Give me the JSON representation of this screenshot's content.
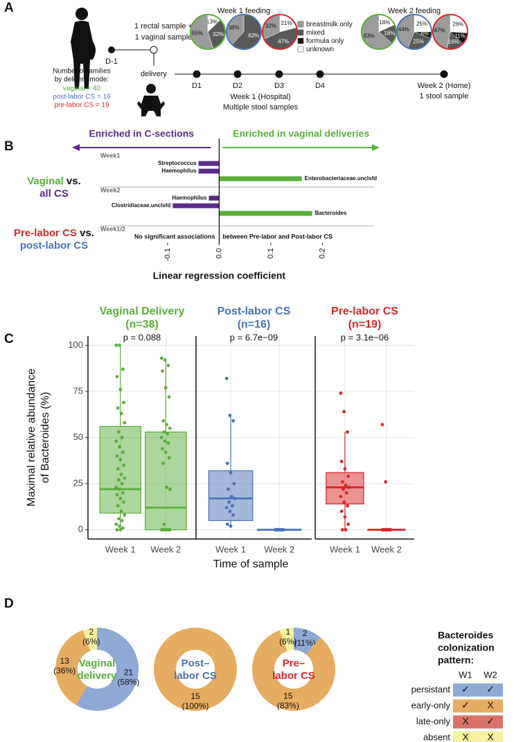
{
  "panel_labels": [
    "A",
    "B",
    "C",
    "D"
  ],
  "panel_a": {
    "sample_text": [
      "1 rectal sample +",
      "1 vaginal sample"
    ],
    "day_minus": "D-1",
    "delivery": "delivery",
    "families_title": [
      "Number of families",
      "by delivery mode:"
    ],
    "families": [
      {
        "text": "vaginal = 40",
        "color": "#5aae3c"
      },
      {
        "text": "post-labor CS = 16",
        "color": "#4a72b8"
      },
      {
        "text": "pre-labor CS = 19",
        "color": "#d62728"
      }
    ],
    "days": [
      "D1",
      "D2",
      "D3",
      "D4"
    ],
    "week1": [
      "Week 1 (Hospital)",
      "Multiple stool samples"
    ],
    "week2": [
      "Week 2 (Home)",
      "1 stool sample"
    ]
  },
  "chart_data": [
    {
      "type": "pie",
      "categories": [
        "breastmilk only",
        "mixed",
        "formula only",
        "unknown"
      ],
      "colors": [
        "#9b9b9b",
        "#595959",
        "#111111",
        "#ffffff"
      ],
      "groups": [
        {
          "title": "Week 1 feeding",
          "pies": [
            {
              "border": "#5aae3c",
              "values": [
                55,
                32,
                0,
                13
              ],
              "value_labels": [
                "55%",
                "32%",
                null,
                "13%"
              ]
            },
            {
              "border": "#4a72b8",
              "values": [
                38,
                62,
                0,
                0
              ],
              "value_labels": [
                "38%",
                "62%",
                null,
                null
              ]
            },
            {
              "border": "#d62728",
              "values": [
                32,
                47,
                0,
                21
              ],
              "value_labels": [
                "32%",
                "47%",
                null,
                "21%"
              ]
            }
          ]
        },
        {
          "title": "Week 2 feeding",
          "pies": [
            {
              "border": "#5aae3c",
              "values": [
                63,
                18,
                0,
                18
              ],
              "value_labels": [
                "63%",
                "18%",
                null,
                "18%"
              ]
            },
            {
              "border": "#4a72b8",
              "values": [
                44,
                25,
                6,
                25
              ],
              "value_labels": [
                "44%",
                "25%",
                "6%",
                "25%"
              ]
            },
            {
              "border": "#d62728",
              "values": [
                47,
                16,
                11,
                26
              ],
              "value_labels": [
                "47%",
                "16%",
                "11%",
                "26%"
              ]
            }
          ]
        }
      ]
    },
    {
      "type": "bar",
      "horizontal": true,
      "arrows": [
        {
          "text": "Enriched in C-sections",
          "color": "#5b2c8a"
        },
        {
          "text": "Enriched in vaginal deliveries",
          "color": "#5aae3c"
        }
      ],
      "comparisons": [
        {
          "lines": [
            [
              {
                "text": "Vaginal",
                "color": "#5aae3c"
              },
              {
                "text": " vs.",
                "color": "#111111"
              }
            ],
            [
              {
                "text": "all CS",
                "color": "#5b2c8a"
              }
            ]
          ]
        },
        {
          "lines": [
            [
              {
                "text": "Pre-labor CS",
                "color": "#d62728"
              },
              {
                "text": " vs.",
                "color": "#111111"
              }
            ],
            [
              {
                "text": "post-labor CS",
                "color": "#4a72b8"
              }
            ]
          ]
        }
      ],
      "sections": [
        {
          "label": "Week1",
          "categories": [
            "Streptococcus",
            "Haemophilus",
            "Enterobacteriaceae.unclsfd"
          ],
          "values": [
            -0.04,
            -0.04,
            0.16
          ]
        },
        {
          "label": "Week2",
          "categories": [
            "Haemophilus",
            "Clostridiaceae.unclsfd",
            "Bacteroides"
          ],
          "values": [
            -0.02,
            -0.09,
            0.18
          ]
        },
        {
          "label": "Week1/2",
          "note": [
            "No significant associations",
            "between Pre-labor and Post-labor CS"
          ]
        }
      ],
      "negative_color": "#5b2c8a",
      "positive_color": "#5aae3c",
      "xlim": [
        -0.23,
        0.3
      ],
      "xticks": [
        -0.1,
        {
          "value": 0,
          "label": "0.0"
        },
        0.1,
        0.2
      ],
      "xlabel": "Linear regression coefficient"
    },
    {
      "type": "box",
      "ylabel": [
        "Maximal relative abundance",
        "of Bacteroides (%)"
      ],
      "xlabel": "Time of sample",
      "categories": [
        "Week 1",
        "Week 2"
      ],
      "ylim": [
        -5,
        105
      ],
      "yticks": [
        0,
        25,
        50,
        75,
        100
      ],
      "grid": true,
      "facets": [
        {
          "title": [
            "Vaginal Delivery",
            "(n=38)"
          ],
          "subtitle": "p = 0.088",
          "color": "#5aae3c",
          "boxes": [
            {
              "low": 0,
              "q1": 9,
              "median": 22,
              "q3": 56,
              "high": 100,
              "points": [
                100,
                100,
                87,
                83,
                76,
                69,
                66,
                63,
                58,
                53,
                50,
                48,
                45,
                42,
                40,
                38,
                35,
                33,
                30,
                28,
                27,
                25,
                23,
                22,
                20,
                19,
                17,
                15,
                13,
                10,
                8,
                6,
                5,
                3,
                2,
                1,
                0,
                0
              ]
            },
            {
              "low": 0,
              "q1": 0,
              "median": 12,
              "q3": 53,
              "high": 93,
              "points": [
                93,
                92,
                89,
                86,
                77,
                72,
                59,
                57,
                55,
                53,
                52,
                50,
                48,
                47,
                44,
                42,
                39,
                36,
                23,
                22,
                3,
                0,
                0,
                0,
                0,
                0,
                0,
                0,
                0,
                0,
                0,
                0,
                0,
                0,
                0,
                0,
                0,
                0
              ]
            }
          ]
        },
        {
          "title": [
            "Post-labor CS",
            "(n=16)"
          ],
          "subtitle": "p = 6.7e−09",
          "color": "#4a72b8",
          "boxes": [
            {
              "low": 2,
              "q1": 5,
              "median": 17,
              "q3": 32,
              "high": 62,
              "points": [
                82,
                62,
                59,
                36,
                31,
                25,
                22,
                18,
                17,
                15,
                13,
                12,
                10,
                8,
                3,
                2
              ]
            },
            {
              "low": 0,
              "q1": 0,
              "median": 0,
              "q3": 0,
              "high": 0,
              "points": [
                0,
                0,
                0,
                0,
                0,
                0,
                0,
                0,
                0,
                0,
                0,
                0,
                0,
                0,
                0,
                0
              ]
            }
          ]
        },
        {
          "title": [
            "Pre-labor CS",
            "(n=19)"
          ],
          "subtitle": "p = 3.1e−06",
          "color": "#d62728",
          "boxes": [
            {
              "low": 0,
              "q1": 14,
              "median": 23,
              "q3": 31,
              "high": 53,
              "points": [
                74,
                64,
                53,
                37,
                33,
                29,
                26,
                24,
                23,
                22,
                20,
                18,
                15,
                13,
                10,
                7,
                3,
                0,
                0
              ]
            },
            {
              "low": 0,
              "q1": 0,
              "median": 0,
              "q3": 0,
              "high": 0,
              "points": [
                57,
                26,
                0,
                0,
                0,
                0,
                0,
                0,
                0,
                0,
                0,
                0,
                0,
                0,
                0,
                0,
                0,
                0,
                0
              ]
            }
          ]
        }
      ]
    },
    {
      "type": "donut",
      "categories": [
        "persistant",
        "early-only",
        "late-only",
        "absent"
      ],
      "colors": [
        "#8fa9d4",
        "#e6ad62",
        "#d9736a",
        "#f6f29e"
      ],
      "series": [
        {
          "label": [
            "Vaginal",
            "delivery"
          ],
          "color": "#5aae3c",
          "values": [
            21,
            13,
            0,
            2
          ],
          "percent_labels": [
            "(58%)",
            "(36%)",
            null,
            "(6%)"
          ]
        },
        {
          "label": [
            "Post–",
            "labor CS"
          ],
          "color": "#4a72b8",
          "values": [
            0,
            15,
            0,
            0
          ],
          "percent_labels": [
            null,
            "(100%)",
            null,
            null
          ]
        },
        {
          "label": [
            "Pre–",
            "labor CS"
          ],
          "color": "#d62728",
          "values": [
            2,
            15,
            0,
            1
          ],
          "percent_labels": [
            "(11%)",
            "(83%)",
            null,
            "(6%)"
          ]
        }
      ],
      "legend": {
        "title": [
          "Bacteroides",
          "colonization",
          "pattern:"
        ],
        "columns": [
          "W1",
          "W2"
        ],
        "rows": [
          [
            "✓",
            "✓"
          ],
          [
            "✓",
            "X"
          ],
          [
            "X",
            "✓"
          ],
          [
            "X",
            "X"
          ]
        ]
      }
    }
  ]
}
